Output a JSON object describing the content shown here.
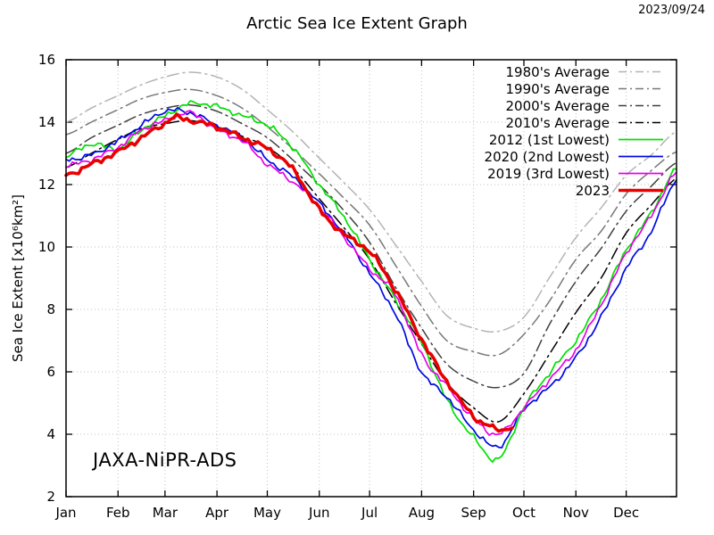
{
  "header": {
    "date": "2023/09/24"
  },
  "watermark": "JAXA-NiPR-ADS",
  "chart_data": {
    "type": "line",
    "title": "Arctic Sea Ice Extent Graph",
    "xlabel": "",
    "ylabel": "Sea Ice Extent [x10⁶km²]",
    "ylim": [
      2,
      16
    ],
    "y_ticks": [
      2,
      4,
      6,
      8,
      10,
      12,
      14,
      16
    ],
    "x_unit": "day_of_year",
    "xlim": [
      0,
      364
    ],
    "grid": true,
    "legend_position": "top-right",
    "month_labels": [
      "Jan",
      "Feb",
      "Mar",
      "Apr",
      "May",
      "Jun",
      "Jul",
      "Aug",
      "Sep",
      "Oct",
      "Nov",
      "Dec"
    ],
    "month_start_days": [
      0,
      31,
      59,
      90,
      120,
      151,
      181,
      212,
      243,
      273,
      304,
      334
    ],
    "series": [
      {
        "name": "1980's Average",
        "color": "#b4b4b4",
        "style": "dashdot",
        "width": 1.5,
        "days": [
          0,
          15,
          31,
          45,
          59,
          74,
          90,
          105,
          120,
          135,
          151,
          166,
          181,
          196,
          212,
          227,
          243,
          258,
          273,
          288,
          304,
          319,
          334,
          349,
          364
        ],
        "values": [
          14.0,
          14.45,
          14.85,
          15.2,
          15.45,
          15.6,
          15.45,
          15.05,
          14.4,
          13.7,
          12.85,
          12.05,
          11.2,
          10.1,
          8.9,
          7.8,
          7.4,
          7.3,
          7.75,
          9.0,
          10.3,
          11.25,
          12.3,
          12.95,
          13.7
        ]
      },
      {
        "name": "1990's Average",
        "color": "#787878",
        "style": "dashdot",
        "width": 1.5,
        "days": [
          0,
          15,
          31,
          45,
          59,
          74,
          90,
          105,
          120,
          135,
          151,
          166,
          181,
          196,
          212,
          227,
          243,
          258,
          273,
          288,
          304,
          319,
          334,
          349,
          364
        ],
        "values": [
          13.6,
          14.0,
          14.4,
          14.75,
          14.95,
          15.05,
          14.85,
          14.45,
          13.85,
          13.15,
          12.35,
          11.55,
          10.7,
          9.45,
          8.1,
          7.0,
          6.65,
          6.55,
          7.2,
          8.25,
          9.6,
          10.5,
          11.7,
          12.45,
          13.05
        ]
      },
      {
        "name": "2000's Average",
        "color": "#404040",
        "style": "dashdot",
        "width": 1.5,
        "days": [
          0,
          15,
          31,
          45,
          59,
          74,
          90,
          105,
          120,
          135,
          151,
          166,
          181,
          196,
          212,
          227,
          243,
          258,
          273,
          288,
          304,
          319,
          334,
          349,
          364
        ],
        "values": [
          13.0,
          13.5,
          13.9,
          14.25,
          14.45,
          14.55,
          14.35,
          13.95,
          13.5,
          12.8,
          12.0,
          11.15,
          10.15,
          8.75,
          7.4,
          6.25,
          5.7,
          5.5,
          5.95,
          7.5,
          8.9,
          9.95,
          11.15,
          11.95,
          12.7
        ]
      },
      {
        "name": "2010's Average",
        "color": "#000000",
        "style": "dashdot",
        "width": 1.5,
        "days": [
          0,
          15,
          31,
          45,
          59,
          74,
          90,
          105,
          120,
          135,
          151,
          166,
          181,
          196,
          212,
          227,
          243,
          258,
          273,
          288,
          304,
          319,
          334,
          349,
          364
        ],
        "values": [
          12.55,
          13.0,
          13.45,
          13.8,
          13.95,
          14.05,
          13.85,
          13.55,
          13.2,
          12.55,
          11.55,
          10.6,
          9.6,
          8.25,
          6.9,
          5.65,
          4.85,
          4.4,
          5.3,
          6.55,
          7.9,
          9.0,
          10.45,
          11.35,
          12.2
        ]
      },
      {
        "name": "2012 (1st Lowest)",
        "color": "#00e000",
        "style": "solid",
        "width": 1.7,
        "days": [
          0,
          15,
          31,
          45,
          59,
          74,
          90,
          105,
          120,
          135,
          151,
          166,
          181,
          196,
          212,
          227,
          243,
          258,
          273,
          288,
          304,
          319,
          334,
          349,
          364
        ],
        "values": [
          12.9,
          13.3,
          13.15,
          13.75,
          14.2,
          14.6,
          14.5,
          14.2,
          13.9,
          13.2,
          12.0,
          10.95,
          9.6,
          8.35,
          6.95,
          5.1,
          3.9,
          3.2,
          4.85,
          5.95,
          7.0,
          8.3,
          9.9,
          11.1,
          12.5
        ]
      },
      {
        "name": "2020 (2nd Lowest)",
        "color": "#0008e0",
        "style": "solid",
        "width": 1.7,
        "days": [
          0,
          15,
          31,
          45,
          59,
          74,
          90,
          105,
          120,
          135,
          151,
          166,
          181,
          196,
          212,
          227,
          243,
          258,
          273,
          288,
          304,
          319,
          334,
          349,
          364
        ],
        "values": [
          12.8,
          12.95,
          13.4,
          13.9,
          14.35,
          14.3,
          13.9,
          13.5,
          12.8,
          12.25,
          11.4,
          10.4,
          9.15,
          7.9,
          6.0,
          5.2,
          4.15,
          3.6,
          4.8,
          5.5,
          6.45,
          7.75,
          9.3,
          10.5,
          12.15
        ]
      },
      {
        "name": "2019 (3rd Lowest)",
        "color": "#e800e8",
        "style": "solid",
        "width": 1.7,
        "days": [
          0,
          15,
          31,
          45,
          59,
          74,
          90,
          105,
          120,
          135,
          151,
          166,
          181,
          196,
          212,
          227,
          243,
          258,
          273,
          288,
          304,
          319,
          334,
          349,
          364
        ],
        "values": [
          12.6,
          12.8,
          13.2,
          13.75,
          14.05,
          14.3,
          13.75,
          13.4,
          12.65,
          12.1,
          11.3,
          10.3,
          9.3,
          8.5,
          6.55,
          5.55,
          4.5,
          4.0,
          4.85,
          5.75,
          6.7,
          8.15,
          9.8,
          11.0,
          12.4
        ]
      },
      {
        "name": "2023",
        "color": "#e80000",
        "style": "solid",
        "width": 3.6,
        "days": [
          0,
          15,
          31,
          45,
          59,
          64,
          74,
          90,
          105,
          120,
          135,
          151,
          166,
          181,
          196,
          212,
          227,
          243,
          251,
          258,
          266
        ],
        "values": [
          12.3,
          12.65,
          13.05,
          13.5,
          13.95,
          14.15,
          14.05,
          13.85,
          13.5,
          13.15,
          12.5,
          11.2,
          10.4,
          9.85,
          8.65,
          7.05,
          5.7,
          4.6,
          4.3,
          4.15,
          4.2
        ]
      }
    ]
  }
}
